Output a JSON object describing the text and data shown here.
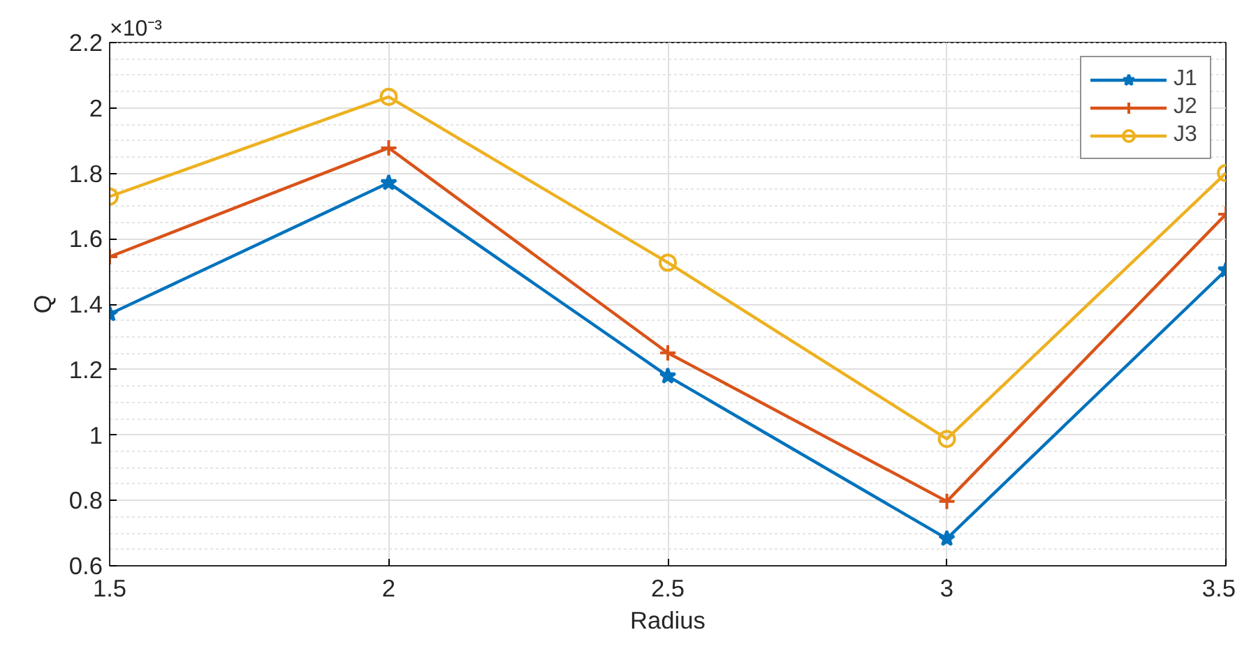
{
  "chart_data": {
    "type": "line",
    "xlabel": "Radius",
    "ylabel": "Q",
    "annotations": [
      "×10⁻³"
    ],
    "x": [
      1.5,
      2,
      2.5,
      3,
      3.5
    ],
    "series": [
      {
        "name": "J1",
        "color": "#0072bd",
        "marker": "star",
        "values": [
          1.37,
          1.771,
          1.18,
          0.683,
          1.504
        ]
      },
      {
        "name": "J2",
        "color": "#d95319",
        "marker": "cross",
        "values": [
          1.545,
          1.878,
          1.251,
          0.797,
          1.675
        ]
      },
      {
        "name": "J3",
        "color": "#edb120",
        "marker": "circle",
        "values": [
          1.729,
          2.034,
          1.527,
          0.988,
          1.801
        ]
      }
    ],
    "xlim": [
      1.5,
      3.5
    ],
    "xticks": [
      1.5,
      2,
      2.5,
      3,
      3.5
    ],
    "ylim": [
      0.6,
      2.2
    ],
    "yticks": [
      0.6,
      0.8,
      1,
      1.2,
      1.4,
      1.6,
      1.8,
      2,
      2.2
    ],
    "grid": true,
    "legend": "top right",
    "line_style": "solid"
  }
}
